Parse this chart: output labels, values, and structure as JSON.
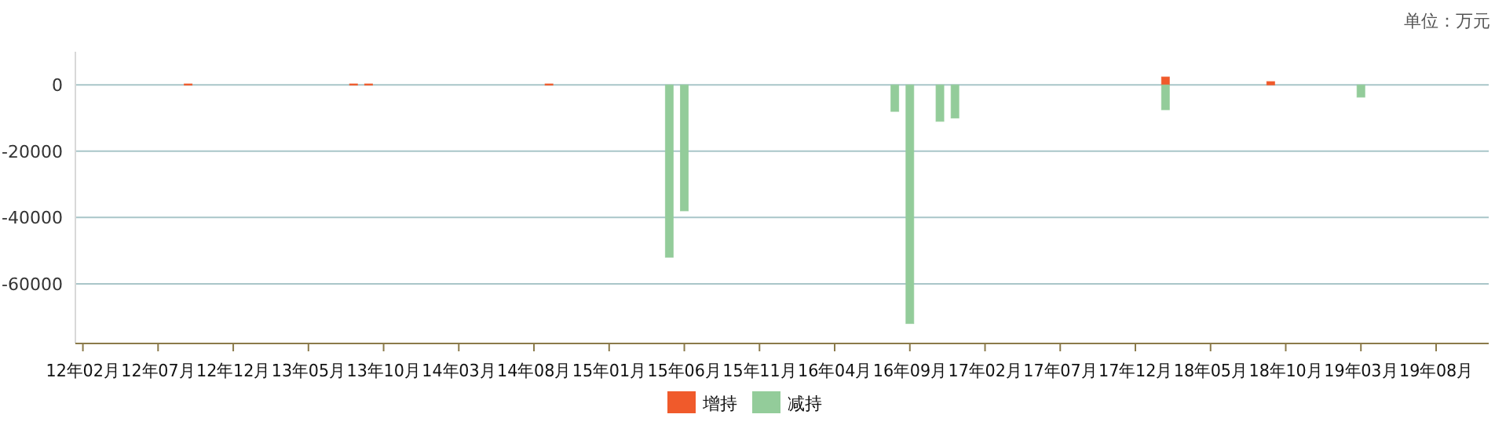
{
  "chart_data": {
    "type": "bar",
    "annotations": [
      "单位：万元"
    ],
    "categories": [
      "12年02月",
      null,
      null,
      null,
      null,
      "12年07月",
      null,
      null,
      null,
      null,
      "12年12月",
      null,
      null,
      null,
      null,
      "13年05月",
      null,
      null,
      null,
      null,
      "13年10月",
      null,
      null,
      null,
      null,
      "14年03月",
      null,
      null,
      null,
      null,
      "14年08月",
      null,
      null,
      null,
      null,
      "15年01月",
      null,
      null,
      null,
      null,
      "15年06月",
      null,
      null,
      null,
      null,
      "15年11月",
      null,
      null,
      null,
      null,
      "16年04月",
      null,
      null,
      null,
      null,
      "16年09月",
      null,
      null,
      null,
      null,
      "17年02月",
      null,
      null,
      null,
      null,
      "17年07月",
      null,
      null,
      null,
      null,
      "17年12月",
      null,
      null,
      null,
      null,
      "18年05月",
      null,
      null,
      null,
      null,
      "18年10月",
      null,
      null,
      null,
      null,
      "19年03月",
      null,
      null,
      null,
      null,
      "19年08月",
      null,
      null,
      null
    ],
    "series": [
      {
        "name": "增持",
        "color": "#f05a2b",
        "values": [
          null,
          null,
          null,
          null,
          null,
          null,
          null,
          300,
          null,
          null,
          null,
          null,
          null,
          null,
          null,
          null,
          null,
          null,
          300,
          300,
          null,
          null,
          null,
          null,
          null,
          null,
          null,
          null,
          null,
          null,
          null,
          300,
          null,
          null,
          null,
          null,
          null,
          null,
          null,
          null,
          null,
          null,
          null,
          null,
          null,
          null,
          null,
          null,
          null,
          null,
          null,
          null,
          null,
          null,
          null,
          null,
          null,
          null,
          null,
          null,
          null,
          null,
          null,
          null,
          null,
          null,
          null,
          null,
          null,
          null,
          null,
          null,
          2400,
          null,
          null,
          null,
          null,
          null,
          null,
          1000,
          null,
          null,
          null,
          null,
          null,
          null,
          null,
          null,
          null,
          null,
          null,
          null,
          null,
          null
        ]
      },
      {
        "name": "减持",
        "color": "#93cc9a",
        "values": [
          null,
          null,
          null,
          null,
          null,
          null,
          null,
          null,
          null,
          null,
          null,
          null,
          null,
          null,
          null,
          null,
          null,
          null,
          null,
          null,
          null,
          null,
          null,
          null,
          null,
          null,
          null,
          null,
          null,
          null,
          null,
          null,
          null,
          null,
          null,
          null,
          null,
          null,
          null,
          -52000,
          -38000,
          null,
          null,
          null,
          null,
          null,
          null,
          null,
          null,
          null,
          null,
          null,
          null,
          null,
          -8000,
          -72000,
          null,
          -11000,
          -10000,
          null,
          null,
          null,
          null,
          null,
          null,
          null,
          null,
          null,
          null,
          null,
          null,
          null,
          -7500,
          null,
          null,
          null,
          null,
          null,
          null,
          null,
          null,
          null,
          null,
          null,
          null,
          -3700,
          null,
          null,
          null,
          null,
          null,
          null,
          null,
          null
        ]
      }
    ],
    "ylim": [
      -78000,
      10000
    ],
    "yticks": [
      -60000,
      -40000,
      -20000,
      0
    ],
    "grid": "y",
    "legend": "bottom"
  }
}
